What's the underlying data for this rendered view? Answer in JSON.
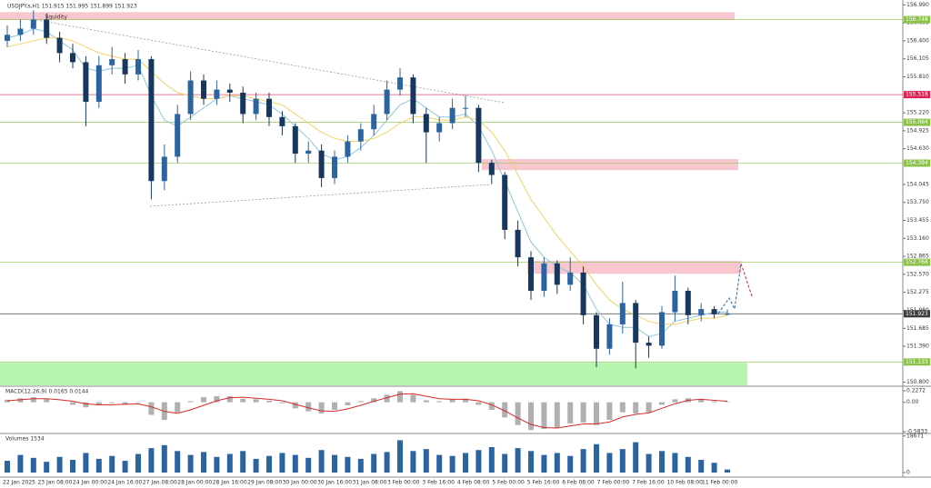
{
  "chart_data": {
    "type": "candlestick",
    "title": "USDJPY.s,H1  151.915 151.995 151.899 151.923",
    "annotation": "liquidity",
    "ylim": [
      150.75,
      157.07
    ],
    "yticks": [
      {
        "value": 156.99,
        "label": "156.990"
      },
      156.695,
      {
        "value": 156.4,
        "label": "156.400"
      },
      156.105,
      {
        "value": 155.81,
        "label": "155.810"
      },
      {
        "value": 155.22,
        "label": "155.220"
      },
      154.925,
      {
        "value": 154.63,
        "label": "154.630"
      },
      154.045,
      {
        "value": 153.75,
        "label": "153.750"
      },
      153.455,
      {
        "value": 153.16,
        "label": "153.160"
      },
      152.865,
      {
        "value": 152.57,
        "label": "152.570"
      },
      152.275,
      {
        "value": 151.98,
        "label": "151.980"
      },
      151.685,
      {
        "value": 151.39,
        "label": "151.390"
      },
      {
        "value": 150.8,
        "label": "150.800"
      }
    ],
    "open": [
      156.4,
      156.5,
      156.6,
      156.75,
      156.45,
      156.2,
      156.05,
      155.4,
      156.0,
      156.1,
      155.85,
      156.1,
      154.1,
      154.5,
      155.2,
      155.75,
      155.45,
      155.6,
      155.55,
      155.2,
      155.45,
      155.15,
      155.0,
      154.55,
      154.6,
      154.15,
      154.5,
      154.75,
      154.95,
      155.2,
      155.6,
      155.8,
      155.2,
      154.9,
      155.05,
      155.3,
      155.3,
      154.4,
      154.2,
      153.3,
      152.85,
      152.3,
      152.75,
      152.4,
      152.6,
      151.9,
      151.35,
      151.75,
      152.1,
      151.45,
      151.4,
      151.95,
      152.3,
      151.9,
      152.0,
      151.915
    ],
    "high": [
      156.65,
      156.75,
      156.9,
      156.85,
      156.55,
      156.35,
      156.15,
      156.15,
      156.3,
      156.2,
      156.25,
      156.15,
      154.7,
      155.35,
      155.9,
      155.85,
      155.75,
      155.7,
      155.65,
      155.55,
      155.55,
      155.25,
      155.05,
      154.75,
      154.7,
      154.6,
      154.85,
      155.05,
      155.35,
      155.75,
      155.95,
      155.85,
      155.3,
      155.15,
      155.45,
      155.5,
      155.35,
      154.45,
      154.25,
      153.45,
      152.95,
      152.85,
      152.8,
      152.85,
      152.7,
      151.95,
      151.85,
      152.45,
      152.15,
      151.55,
      152.05,
      152.55,
      152.35,
      152.1,
      152.05,
      151.995
    ],
    "low": [
      156.3,
      156.4,
      156.5,
      156.35,
      156.05,
      155.95,
      155.0,
      155.3,
      155.85,
      155.7,
      155.75,
      153.8,
      153.95,
      154.4,
      155.1,
      155.35,
      155.35,
      155.4,
      155.05,
      155.1,
      155.0,
      154.85,
      154.4,
      154.4,
      154.0,
      154.05,
      154.4,
      154.6,
      154.85,
      155.1,
      155.5,
      155.05,
      154.4,
      154.75,
      154.95,
      155.15,
      154.25,
      154.05,
      153.15,
      152.7,
      152.15,
      152.2,
      152.25,
      152.3,
      151.75,
      151.05,
      151.25,
      151.6,
      151.03,
      151.2,
      151.35,
      151.8,
      151.75,
      151.8,
      151.85,
      151.899
    ],
    "close": [
      156.5,
      156.6,
      156.75,
      156.45,
      156.2,
      156.05,
      155.4,
      156.0,
      156.1,
      155.85,
      156.1,
      154.1,
      154.5,
      155.2,
      155.75,
      155.45,
      155.6,
      155.55,
      155.2,
      155.45,
      155.15,
      155.0,
      154.55,
      154.6,
      154.15,
      154.5,
      154.75,
      154.95,
      155.2,
      155.6,
      155.8,
      155.2,
      154.9,
      155.05,
      155.3,
      155.3,
      154.4,
      154.2,
      153.3,
      152.85,
      152.3,
      152.75,
      152.4,
      152.6,
      151.9,
      151.35,
      151.75,
      152.1,
      151.45,
      151.4,
      151.95,
      152.3,
      151.9,
      152.0,
      151.915,
      151.923
    ],
    "up_color": "#2b64a0",
    "down_color": "#17375e",
    "series": [
      {
        "color": "#8ec6e0",
        "values": [
          156.45,
          156.5,
          156.6,
          156.55,
          156.4,
          156.25,
          155.95,
          155.9,
          155.95,
          155.95,
          156.0,
          155.5,
          155.1,
          155.0,
          155.15,
          155.3,
          155.45,
          155.5,
          155.45,
          155.4,
          155.35,
          155.2,
          155.0,
          154.8,
          154.55,
          154.45,
          154.5,
          154.65,
          154.85,
          155.1,
          155.35,
          155.45,
          155.3,
          155.15,
          155.15,
          155.2,
          155.0,
          154.6,
          154.1,
          153.6,
          153.1,
          152.85,
          152.7,
          152.6,
          152.4,
          152.0,
          151.75,
          151.7,
          151.7,
          151.55,
          151.6,
          151.8,
          151.85,
          151.9,
          151.95,
          151.95
        ]
      },
      {
        "color": "#f2d266",
        "values": [
          156.3,
          156.35,
          156.4,
          156.45,
          156.45,
          156.4,
          156.3,
          156.2,
          156.15,
          156.1,
          156.1,
          155.9,
          155.7,
          155.55,
          155.5,
          155.45,
          155.45,
          155.5,
          155.5,
          155.45,
          155.4,
          155.35,
          155.2,
          155.05,
          154.9,
          154.8,
          154.75,
          154.75,
          154.8,
          154.9,
          155.05,
          155.15,
          155.15,
          155.1,
          155.1,
          155.15,
          155.1,
          154.9,
          154.6,
          154.2,
          153.8,
          153.5,
          153.2,
          152.95,
          152.7,
          152.4,
          152.15,
          152.0,
          151.9,
          151.8,
          151.75,
          151.75,
          151.8,
          151.85,
          151.85,
          151.9
        ]
      }
    ],
    "levels": [
      {
        "value": 156.748,
        "color": "#8bc34a"
      },
      {
        "value": 155.518,
        "color": "#e0204f"
      },
      {
        "value": 155.064,
        "color": "#8bc34a"
      },
      {
        "value": 154.394,
        "color": "#8bc34a"
      },
      {
        "value": 152.768,
        "color": "#8bc34a"
      },
      {
        "value": 151.133,
        "color": "#8bc34a"
      },
      {
        "value": 151.923,
        "color": "#3c3c3c"
      }
    ],
    "zones": [
      {
        "top": 156.87,
        "bottom": 156.74,
        "color": "#f7c6cf"
      },
      {
        "top": 154.46,
        "bottom": 154.28,
        "color": "#f7c6cf"
      },
      {
        "top": 152.79,
        "bottom": 152.58,
        "color": "#f7c6cf"
      },
      {
        "top": 151.12,
        "bottom": 150.75,
        "color": "#b4f5b0"
      }
    ],
    "x_labels": [
      "22 Jan 2025",
      "23 Jan 08:00",
      "24 Jan 00:00",
      "24 Jan 16:00",
      "27 Jan 08:00",
      "28 Jan 00:00",
      "28 Jan 16:00",
      "29 Jan 08:00",
      "30 Jan 00:00",
      "30 Jan 16:00",
      "31 Jan 08:00",
      "3 Feb 00:00",
      "3 Feb 16:00",
      "4 Feb 08:00",
      "5 Feb 00:00",
      "5 Feb 16:00",
      "6 Feb 08:00",
      "7 Feb 00:00",
      "7 Feb 16:00",
      "10 Feb 08:00",
      "11 Feb 00:00"
    ],
    "macd": {
      "title": "MACD(12,26,9) 0.0165 0.0144",
      "ylim": [
        -0.6,
        0.3
      ],
      "yticks": [
        0.2272,
        {
          "value": 0,
          "label": "0.00"
        },
        -0.5833
      ],
      "hist_color": "#b0b0b0",
      "signal_color": "#d42a2a",
      "hist": [
        0.05,
        0.08,
        0.1,
        0.06,
        0.0,
        -0.05,
        -0.1,
        -0.06,
        -0.02,
        -0.04,
        -0.01,
        -0.25,
        -0.35,
        -0.2,
        0.02,
        0.1,
        0.12,
        0.12,
        0.07,
        0.06,
        0.03,
        -0.02,
        -0.12,
        -0.18,
        -0.22,
        -0.15,
        -0.06,
        0.02,
        0.08,
        0.15,
        0.22,
        0.15,
        0.04,
        0.02,
        0.06,
        0.07,
        -0.05,
        -0.15,
        -0.3,
        -0.45,
        -0.55,
        -0.53,
        -0.5,
        -0.42,
        -0.4,
        -0.45,
        -0.35,
        -0.2,
        -0.22,
        -0.2,
        -0.05,
        0.06,
        0.08,
        0.05,
        0.02,
        0.01
      ],
      "signal": [
        0.03,
        0.05,
        0.07,
        0.07,
        0.05,
        0.02,
        -0.03,
        -0.05,
        -0.05,
        -0.04,
        -0.03,
        -0.09,
        -0.18,
        -0.22,
        -0.15,
        -0.06,
        0.03,
        0.09,
        0.1,
        0.08,
        0.06,
        0.03,
        -0.04,
        -0.11,
        -0.17,
        -0.18,
        -0.13,
        -0.06,
        0.02,
        0.09,
        0.16,
        0.17,
        0.12,
        0.07,
        0.06,
        0.06,
        0.03,
        -0.05,
        -0.17,
        -0.31,
        -0.44,
        -0.5,
        -0.51,
        -0.47,
        -0.43,
        -0.43,
        -0.39,
        -0.29,
        -0.24,
        -0.21,
        -0.12,
        -0.03,
        0.04,
        0.06,
        0.04,
        0.02
      ]
    },
    "volume": {
      "title": "Volumes 1534",
      "ylim": [
        0,
        19500
      ],
      "yticks": [
        18671,
        0
      ],
      "color": "#2b64a0",
      "values": [
        6000,
        9000,
        7500,
        5500,
        8000,
        6500,
        10000,
        7000,
        8500,
        6000,
        9500,
        12500,
        14000,
        11000,
        9000,
        10500,
        8000,
        9500,
        11000,
        7000,
        8500,
        10000,
        9000,
        7500,
        11500,
        9000,
        8000,
        7000,
        9500,
        10500,
        16500,
        11000,
        12000,
        9000,
        8500,
        10000,
        11500,
        13000,
        9500,
        12500,
        11000,
        9000,
        10000,
        8500,
        12000,
        14500,
        10000,
        12000,
        15500,
        9500,
        11000,
        10000,
        8000,
        6500,
        5000,
        1534
      ]
    }
  }
}
